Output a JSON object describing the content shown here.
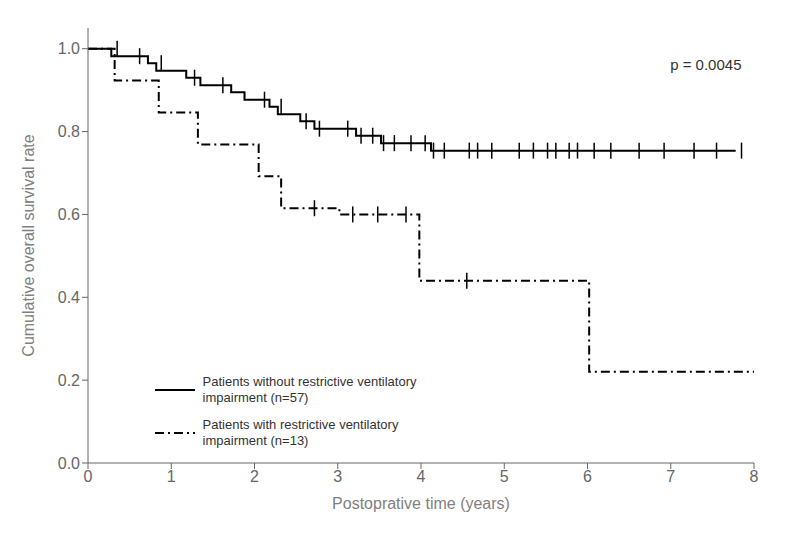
{
  "chart_data": {
    "type": "step",
    "xlabel": "Postoprative time (years)",
    "ylabel": "Cumulative overall survival rate",
    "xlim": [
      0,
      8
    ],
    "ylim": [
      0.0,
      1.05
    ],
    "xticks": [
      0,
      1,
      2,
      3,
      4,
      5,
      6,
      7,
      8
    ],
    "yticks": [
      {
        "value": 0.0,
        "label": "0.0"
      },
      0.2,
      0.4,
      0.6,
      0.8,
      {
        "value": 1.0,
        "label": "1.0"
      }
    ],
    "grid": false,
    "legend": "lower left",
    "annotations": [
      {
        "text": "p = 0.0045",
        "x": 7.85,
        "y": 0.975
      }
    ],
    "series": [
      {
        "name": "Patients without restrictive ventilatory\nimpairment (n=57)",
        "color": "#000000",
        "line_style": "solid",
        "x": [
          0.0,
          0.18,
          0.28,
          0.55,
          0.72,
          0.82,
          1.05,
          1.18,
          1.35,
          1.52,
          1.72,
          1.88,
          2.05,
          2.18,
          2.28,
          2.42,
          2.55,
          2.72,
          2.85,
          3.05,
          3.22,
          3.35,
          3.52,
          3.65,
          3.82,
          3.98,
          4.12,
          4.22,
          4.52,
          4.65,
          4.78,
          5.05,
          7.78
        ],
        "values": [
          1.0,
          1.0,
          0.982,
          0.982,
          0.965,
          0.947,
          0.947,
          0.93,
          0.912,
          0.912,
          0.895,
          0.877,
          0.877,
          0.86,
          0.842,
          0.842,
          0.825,
          0.807,
          0.807,
          0.807,
          0.79,
          0.79,
          0.772,
          0.772,
          0.772,
          0.772,
          0.754,
          0.754,
          0.754,
          0.754,
          0.754,
          0.754,
          0.754
        ],
        "censor_x": [
          0.35,
          0.62,
          0.88,
          1.28,
          1.62,
          2.12,
          2.32,
          2.62,
          2.78,
          3.12,
          3.28,
          3.42,
          3.55,
          3.68,
          3.88,
          4.05,
          4.15,
          4.28,
          4.58,
          4.68,
          4.85,
          5.18,
          5.35,
          5.52,
          5.62,
          5.78,
          5.88,
          6.08,
          6.28,
          6.62,
          6.92,
          7.28,
          7.55,
          7.85
        ],
        "censor_y": [
          1.0,
          0.982,
          0.965,
          0.93,
          0.912,
          0.877,
          0.86,
          0.825,
          0.807,
          0.807,
          0.79,
          0.79,
          0.772,
          0.772,
          0.772,
          0.772,
          0.754,
          0.754,
          0.754,
          0.754,
          0.754,
          0.754,
          0.754,
          0.754,
          0.754,
          0.754,
          0.754,
          0.754,
          0.754,
          0.754,
          0.754,
          0.754,
          0.754,
          0.754
        ]
      },
      {
        "name": "Patients with restrictive ventilatory\nimpairment (n=13)",
        "color": "#000000",
        "line_style": "dashdot",
        "x": [
          0.0,
          0.32,
          0.85,
          1.32,
          2.05,
          2.32,
          2.52,
          3.02,
          3.98,
          6.02,
          8.0
        ],
        "values": [
          1.0,
          0.923,
          0.846,
          0.769,
          0.692,
          0.615,
          0.615,
          0.6,
          0.44,
          0.22,
          0.22
        ],
        "censor_x": [
          2.72,
          3.18,
          3.48,
          3.82,
          4.55
        ],
        "censor_y": [
          0.615,
          0.6,
          0.6,
          0.6,
          0.44
        ]
      }
    ]
  }
}
